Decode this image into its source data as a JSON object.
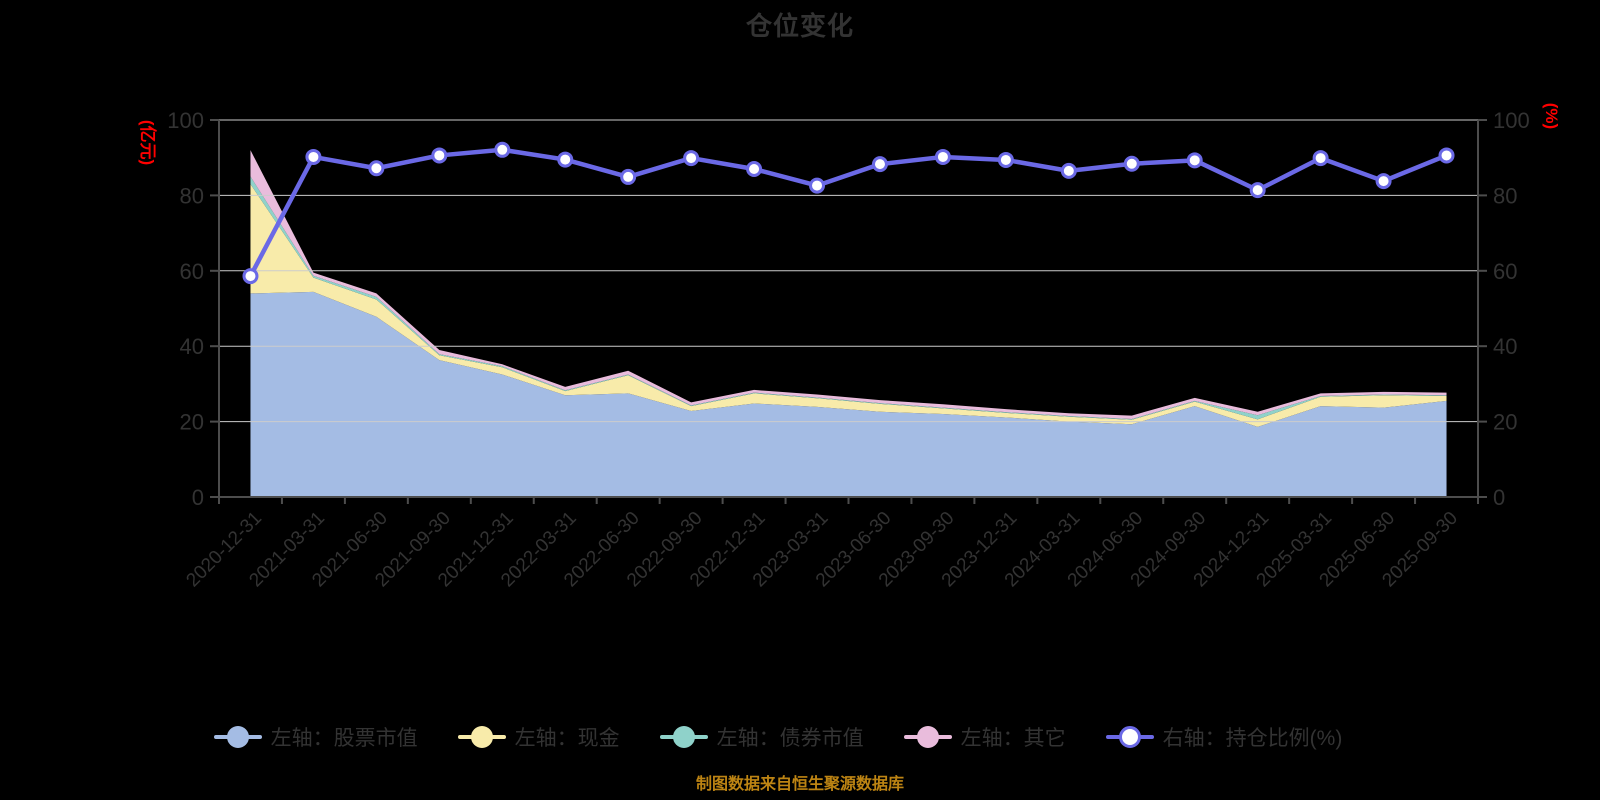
{
  "title": "仓位变化",
  "source_note": "制图数据来自恒生聚源数据库",
  "axes": {
    "left_name": "(亿元)",
    "right_name": "(%)",
    "yticks": [
      0,
      20,
      40,
      60,
      80,
      100
    ],
    "left_range": [
      0,
      100
    ],
    "right_range": [
      0,
      100
    ]
  },
  "colors": {
    "background": "#000000",
    "title_text": "#333333",
    "axis_text": "#333333",
    "axis_name_red": "#ff0000",
    "grid_line": "#cccccc",
    "axis_line": "#4d4d4d",
    "source_text": "#bd8413"
  },
  "chart_data": {
    "type": "area",
    "stacked": true,
    "grid": true,
    "legend_position": "bottom",
    "categories": [
      "2020-12-31",
      "2021-03-31",
      "2021-06-30",
      "2021-09-30",
      "2021-12-31",
      "2022-03-31",
      "2022-06-30",
      "2022-09-30",
      "2022-12-31",
      "2023-03-31",
      "2023-06-30",
      "2023-09-30",
      "2023-12-31",
      "2024-03-31",
      "2024-06-30",
      "2024-09-30",
      "2024-12-31",
      "2025-03-31",
      "2025-06-30",
      "2025-09-30"
    ],
    "series": [
      {
        "name": "左轴：股票市值",
        "type": "area",
        "axis": "left",
        "color": "#a4bce4",
        "values": [
          54.0,
          54.4,
          47.8,
          36.3,
          32.5,
          27.0,
          27.5,
          22.8,
          24.8,
          23.9,
          22.6,
          22.0,
          21.1,
          20.0,
          19.3,
          24.1,
          18.6,
          24.1,
          23.7,
          25.5
        ]
      },
      {
        "name": "左轴：现金",
        "type": "area",
        "axis": "left",
        "color": "#f8ebaa",
        "values": [
          29.0,
          3.8,
          4.6,
          1.3,
          1.9,
          1.1,
          4.8,
          1.3,
          2.7,
          2.3,
          2.1,
          1.5,
          1.2,
          1.3,
          1.2,
          1.2,
          2.0,
          2.5,
          3.3,
          1.3
        ]
      },
      {
        "name": "左轴：债券市值",
        "type": "area",
        "axis": "left",
        "color": "#8fd2ca",
        "values": [
          2.0,
          0.5,
          0.7,
          0.3,
          0.3,
          0.2,
          0.2,
          0.2,
          0.2,
          0.2,
          0.2,
          0.2,
          0.2,
          0.2,
          0.2,
          0.2,
          1.1,
          0.2,
          0.2,
          0.2
        ]
      },
      {
        "name": "左轴：其它",
        "type": "area",
        "axis": "left",
        "color": "#e9bcdc",
        "values": [
          7.0,
          0.8,
          0.9,
          1.1,
          0.5,
          0.9,
          1.0,
          0.8,
          0.7,
          0.8,
          0.8,
          0.9,
          0.8,
          0.7,
          0.9,
          0.8,
          0.9,
          0.7,
          0.7,
          0.7
        ]
      },
      {
        "name": "右轴：持仓比例(%)",
        "type": "line",
        "axis": "right",
        "color": "#6b69e6",
        "marker": "circle-white",
        "values": [
          58.6,
          90.2,
          87.2,
          90.6,
          92.1,
          89.5,
          84.9,
          89.9,
          87.0,
          82.6,
          88.3,
          90.2,
          89.4,
          86.5,
          88.4,
          89.3,
          81.4,
          89.9,
          83.8,
          90.6
        ]
      }
    ]
  }
}
